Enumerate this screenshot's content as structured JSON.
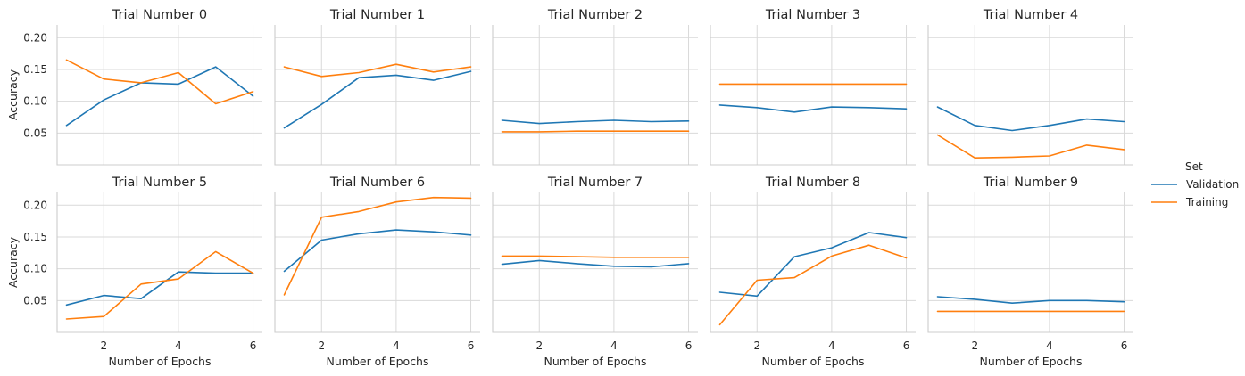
{
  "figure": {
    "legend": {
      "title": "Set",
      "entries": [
        {
          "name": "Validation",
          "color": "#1f77b4"
        },
        {
          "name": "Training",
          "color": "#ff7f0e"
        }
      ]
    }
  },
  "chart_data": {
    "type": "line",
    "layout": "facet-grid 2x5",
    "xlabel": "Number of Epochs",
    "ylabel": "Accuracy",
    "xlim": [
      0.75,
      6.25
    ],
    "ylim": [
      0.0,
      0.22
    ],
    "xticks": [
      "2",
      "4",
      "6"
    ],
    "yticks": [
      "0.05",
      "0.10",
      "0.15",
      "0.20"
    ],
    "grid": true,
    "legend_position": "right",
    "x": [
      1,
      2,
      3,
      4,
      5,
      6
    ],
    "facets": [
      {
        "title": "Trial Number 0",
        "series": [
          {
            "name": "Validation",
            "values": [
              0.062,
              0.102,
              0.129,
              0.127,
              0.154,
              0.108
            ]
          },
          {
            "name": "Training",
            "values": [
              0.165,
              0.135,
              0.129,
              0.145,
              0.096,
              0.115
            ]
          }
        ]
      },
      {
        "title": "Trial Number 1",
        "series": [
          {
            "name": "Validation",
            "values": [
              0.058,
              0.095,
              0.137,
              0.141,
              0.133,
              0.147
            ]
          },
          {
            "name": "Training",
            "values": [
              0.154,
              0.139,
              0.145,
              0.158,
              0.146,
              0.154
            ]
          }
        ]
      },
      {
        "title": "Trial Number 2",
        "series": [
          {
            "name": "Validation",
            "values": [
              0.07,
              0.065,
              0.068,
              0.07,
              0.068,
              0.069
            ]
          },
          {
            "name": "Training",
            "values": [
              0.052,
              0.052,
              0.053,
              0.053,
              0.053,
              0.053
            ]
          }
        ]
      },
      {
        "title": "Trial Number 3",
        "series": [
          {
            "name": "Validation",
            "values": [
              0.094,
              0.09,
              0.083,
              0.091,
              0.09,
              0.088
            ]
          },
          {
            "name": "Training",
            "values": [
              0.127,
              0.127,
              0.127,
              0.127,
              0.127,
              0.127
            ]
          }
        ]
      },
      {
        "title": "Trial Number 4",
        "series": [
          {
            "name": "Validation",
            "values": [
              0.091,
              0.062,
              0.054,
              0.062,
              0.072,
              0.068
            ]
          },
          {
            "name": "Training",
            "values": [
              0.047,
              0.011,
              0.012,
              0.014,
              0.031,
              0.024
            ]
          }
        ]
      },
      {
        "title": "Trial Number 5",
        "series": [
          {
            "name": "Validation",
            "values": [
              0.043,
              0.058,
              0.053,
              0.095,
              0.093,
              0.093
            ]
          },
          {
            "name": "Training",
            "values": [
              0.021,
              0.025,
              0.076,
              0.084,
              0.127,
              0.093
            ]
          }
        ]
      },
      {
        "title": "Trial Number 6",
        "series": [
          {
            "name": "Validation",
            "values": [
              0.096,
              0.145,
              0.155,
              0.161,
              0.158,
              0.153
            ]
          },
          {
            "name": "Training",
            "values": [
              0.059,
              0.181,
              0.19,
              0.205,
              0.212,
              0.211
            ]
          }
        ]
      },
      {
        "title": "Trial Number 7",
        "series": [
          {
            "name": "Validation",
            "values": [
              0.107,
              0.113,
              0.108,
              0.104,
              0.103,
              0.108
            ]
          },
          {
            "name": "Training",
            "values": [
              0.12,
              0.12,
              0.119,
              0.118,
              0.118,
              0.118
            ]
          }
        ]
      },
      {
        "title": "Trial Number 8",
        "series": [
          {
            "name": "Validation",
            "values": [
              0.063,
              0.057,
              0.119,
              0.133,
              0.157,
              0.149
            ]
          },
          {
            "name": "Training",
            "values": [
              0.012,
              0.082,
              0.086,
              0.12,
              0.137,
              0.117
            ]
          }
        ]
      },
      {
        "title": "Trial Number 9",
        "series": [
          {
            "name": "Validation",
            "values": [
              0.056,
              0.052,
              0.046,
              0.05,
              0.05,
              0.048
            ]
          },
          {
            "name": "Training",
            "values": [
              0.033,
              0.033,
              0.033,
              0.033,
              0.033,
              0.033
            ]
          }
        ]
      }
    ]
  }
}
